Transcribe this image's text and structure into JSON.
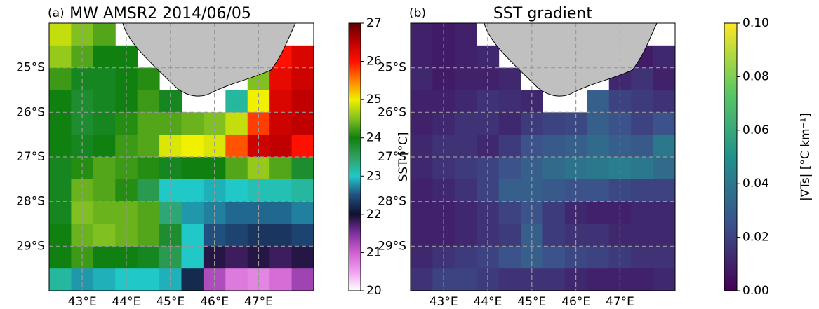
{
  "chart_data": [
    {
      "type": "heatmap",
      "label": "(a)",
      "title": "MW AMSR2 2014/06/05",
      "x": [
        42.5,
        43.0,
        43.5,
        44.0,
        44.5,
        45.0,
        45.5,
        46.0,
        46.5,
        47.0,
        47.5,
        48.0
      ],
      "y": [
        -24.25,
        -24.75,
        -25.25,
        -25.75,
        -26.25,
        -26.75,
        -27.25,
        -27.75,
        -28.25,
        -28.75,
        -29.25,
        -29.75
      ],
      "values": [
        [
          24.8,
          24.5,
          24.3,
          null,
          null,
          null,
          null,
          null,
          null,
          null,
          null,
          null
        ],
        [
          24.6,
          24.3,
          24.0,
          24.0,
          null,
          null,
          null,
          null,
          null,
          null,
          26.0,
          26.3
        ],
        [
          24.2,
          23.9,
          23.9,
          24.0,
          24.1,
          null,
          null,
          null,
          null,
          24.5,
          26.2,
          26.4
        ],
        [
          24.0,
          23.8,
          23.9,
          24.0,
          24.2,
          23.9,
          null,
          null,
          23.2,
          25.0,
          26.3,
          26.5
        ],
        [
          24.0,
          23.8,
          23.9,
          24.1,
          24.3,
          24.3,
          24.4,
          24.5,
          24.8,
          25.8,
          26.4,
          26.5
        ],
        [
          24.0,
          23.9,
          24.0,
          24.2,
          24.3,
          24.9,
          25.0,
          24.9,
          25.7,
          26.4,
          26.5,
          26.0
        ],
        [
          23.9,
          24.1,
          24.3,
          24.2,
          24.1,
          23.9,
          24.0,
          24.0,
          24.3,
          24.6,
          24.3,
          23.8
        ],
        [
          23.9,
          24.4,
          24.3,
          24.1,
          23.6,
          23.0,
          23.0,
          22.9,
          23.0,
          23.1,
          23.1,
          23.2
        ],
        [
          23.9,
          24.5,
          24.4,
          24.4,
          24.3,
          23.4,
          22.8,
          22.7,
          22.6,
          22.6,
          22.6,
          22.7
        ],
        [
          24.0,
          24.4,
          24.5,
          24.4,
          24.3,
          23.8,
          23.0,
          22.5,
          22.4,
          22.3,
          22.3,
          22.4
        ],
        [
          24.0,
          24.2,
          24.0,
          24.0,
          23.9,
          23.6,
          23.0,
          21.9,
          21.8,
          21.9,
          21.8,
          21.9
        ],
        [
          23.2,
          22.8,
          22.9,
          23.0,
          23.0,
          22.9,
          22.2,
          21.2,
          20.8,
          20.7,
          20.9,
          21.3
        ]
      ],
      "xlim": [
        42.25,
        48.25
      ],
      "ylim": [
        -30,
        -24
      ],
      "xticks": [
        {
          "value": 43,
          "label": "43°E"
        },
        {
          "value": 44,
          "label": "44°E"
        },
        {
          "value": 45,
          "label": "45°E"
        },
        {
          "value": 46,
          "label": "46°E"
        },
        {
          "value": 47,
          "label": "47°E"
        }
      ],
      "yticks": [
        {
          "value": -25,
          "label": "25°S"
        },
        {
          "value": -26,
          "label": "26°S"
        },
        {
          "value": -27,
          "label": "27°S"
        },
        {
          "value": -28,
          "label": "28°S"
        },
        {
          "value": -29,
          "label": "29°S"
        }
      ],
      "grid": true,
      "colorbar": {
        "label": "SST [°C]",
        "lim": [
          20,
          27
        ],
        "ticks": [
          20,
          21,
          22,
          23,
          24,
          25,
          26,
          27
        ],
        "colors": [
          "#ffffff",
          "#f0a0f0",
          "#d060d0",
          "#8030a0",
          "#101030",
          "#205080",
          "#20c8c8",
          "#30a060",
          "#108010",
          "#80c020",
          "#f0f000",
          "#ff8000",
          "#ff1000",
          "#c00000",
          "#600000"
        ]
      }
    },
    {
      "type": "heatmap",
      "label": "(b)",
      "title": "SST gradient",
      "x": [
        42.5,
        43.0,
        43.5,
        44.0,
        44.5,
        45.0,
        45.5,
        46.0,
        46.5,
        47.0,
        47.5,
        48.0
      ],
      "y": [
        -24.25,
        -24.75,
        -25.25,
        -25.75,
        -26.25,
        -26.75,
        -27.25,
        -27.75,
        -28.25,
        -28.75,
        -29.25,
        -29.75
      ],
      "values": [
        [
          0.01,
          0.008,
          0.01,
          null,
          null,
          null,
          null,
          null,
          null,
          null,
          null,
          null
        ],
        [
          0.01,
          0.008,
          0.01,
          0.012,
          null,
          null,
          null,
          null,
          null,
          null,
          0.008,
          0.012
        ],
        [
          0.012,
          0.008,
          0.01,
          0.01,
          0.012,
          null,
          null,
          null,
          null,
          0.012,
          0.015,
          0.01
        ],
        [
          0.01,
          0.01,
          0.012,
          0.015,
          0.014,
          0.012,
          null,
          null,
          0.03,
          0.02,
          0.018,
          0.015
        ],
        [
          0.01,
          0.012,
          0.015,
          0.015,
          0.012,
          0.018,
          0.02,
          0.022,
          0.03,
          0.025,
          0.02,
          0.025
        ],
        [
          0.012,
          0.015,
          0.015,
          0.012,
          0.018,
          0.025,
          0.028,
          0.03,
          0.035,
          0.03,
          0.028,
          0.04
        ],
        [
          0.012,
          0.015,
          0.018,
          0.02,
          0.025,
          0.03,
          0.035,
          0.038,
          0.04,
          0.042,
          0.04,
          0.035
        ],
        [
          0.01,
          0.012,
          0.015,
          0.02,
          0.03,
          0.03,
          0.028,
          0.025,
          0.025,
          0.022,
          0.02,
          0.02
        ],
        [
          0.01,
          0.01,
          0.012,
          0.015,
          0.02,
          0.025,
          0.018,
          0.012,
          0.01,
          0.01,
          0.012,
          0.012
        ],
        [
          0.01,
          0.01,
          0.012,
          0.015,
          0.018,
          0.03,
          0.018,
          0.015,
          0.015,
          0.012,
          0.012,
          0.012
        ],
        [
          0.012,
          0.015,
          0.018,
          0.02,
          0.025,
          0.03,
          0.025,
          0.022,
          0.02,
          0.018,
          0.015,
          0.015
        ],
        [
          0.015,
          0.02,
          0.02,
          0.018,
          0.015,
          0.015,
          0.015,
          0.012,
          0.01,
          0.01,
          0.01,
          0.012
        ]
      ],
      "xlim": [
        42.25,
        48.25
      ],
      "ylim": [
        -30,
        -24
      ],
      "xticks": [
        {
          "value": 43,
          "label": "43°E"
        },
        {
          "value": 44,
          "label": "44°E"
        },
        {
          "value": 45,
          "label": "45°E"
        },
        {
          "value": 46,
          "label": "46°E"
        },
        {
          "value": 47,
          "label": "47°E"
        }
      ],
      "yticks": [
        {
          "value": -25,
          "label": "25°S"
        },
        {
          "value": -26,
          "label": "26°S"
        },
        {
          "value": -27,
          "label": "27°S"
        },
        {
          "value": -28,
          "label": "28°S"
        },
        {
          "value": -29,
          "label": "29°S"
        }
      ],
      "grid": true,
      "colorbar": {
        "label": "|∇Ts| [°C km⁻¹]",
        "lim": [
          0,
          0.1
        ],
        "ticks": [
          {
            "value": 0,
            "label": "0.00"
          },
          0.02,
          0.04,
          0.06,
          0.08,
          {
            "value": 0.1,
            "label": "0.10"
          }
        ],
        "colors": [
          "#440154",
          "#3b528b",
          "#21918c",
          "#5ec962",
          "#fde725"
        ]
      }
    }
  ]
}
